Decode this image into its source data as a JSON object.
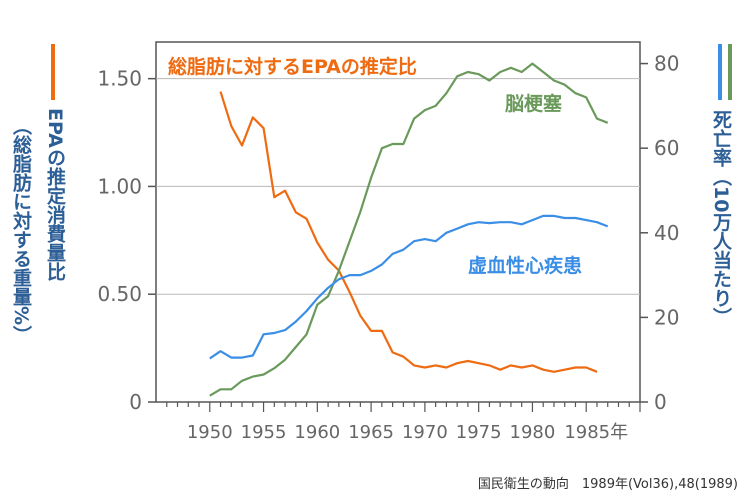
{
  "chart_data": {
    "type": "line",
    "x_axis": {
      "ticks": [
        1950,
        1955,
        1960,
        1965,
        1970,
        1975,
        1980,
        1985
      ],
      "tick_labels": [
        "1950",
        "1955",
        "1960",
        "1965",
        "1970",
        "1975",
        "1980",
        "1985年"
      ],
      "range": [
        1945,
        1990
      ]
    },
    "left_axis": {
      "label_color_bar": "#ee6b12",
      "label": "EPAの推定消費量比",
      "label_sub": "（総脂肪に対する重量%）",
      "ticks": [
        0,
        0.5,
        1.0,
        1.5
      ],
      "tick_labels": [
        "0",
        "0.50",
        "1.00",
        "1.50"
      ],
      "range": [
        0,
        1.67
      ]
    },
    "right_axis": {
      "label": "死亡率（10万人当たり）",
      "ticks": [
        0,
        20,
        40,
        60,
        80
      ],
      "tick_labels": [
        "0",
        "20",
        "40",
        "60",
        "80"
      ],
      "range": [
        0,
        85.1
      ]
    },
    "series": [
      {
        "name": "総脂肪に対するEPAの推定比",
        "color": "#ee6b12",
        "axis": "left",
        "x": [
          1951,
          1952,
          1953,
          1954,
          1955,
          1956,
          1957,
          1958,
          1959,
          1960,
          1961,
          1962,
          1963,
          1964,
          1965,
          1966,
          1967,
          1968,
          1969,
          1970,
          1971,
          1972,
          1973,
          1974,
          1975,
          1976,
          1977,
          1978,
          1979,
          1980,
          1981,
          1982,
          1983,
          1984,
          1985,
          1986
        ],
        "y": [
          1.44,
          1.28,
          1.19,
          1.32,
          1.27,
          0.95,
          0.98,
          0.88,
          0.85,
          0.74,
          0.66,
          0.61,
          0.51,
          0.4,
          0.33,
          0.33,
          0.23,
          0.21,
          0.17,
          0.16,
          0.17,
          0.16,
          0.18,
          0.19,
          0.18,
          0.17,
          0.15,
          0.17,
          0.16,
          0.17,
          0.15,
          0.14,
          0.15,
          0.16,
          0.16,
          0.14
        ]
      },
      {
        "name": "脳梗塞",
        "color": "#6a9a5b",
        "axis": "right",
        "x": [
          1950,
          1951,
          1952,
          1953,
          1954,
          1955,
          1956,
          1957,
          1958,
          1959,
          1960,
          1961,
          1962,
          1963,
          1964,
          1965,
          1966,
          1967,
          1968,
          1969,
          1970,
          1971,
          1972,
          1973,
          1974,
          1975,
          1976,
          1977,
          1978,
          1979,
          1980,
          1981,
          1982,
          1983,
          1984,
          1985,
          1986,
          1987
        ],
        "y": [
          1.5,
          3,
          3,
          5,
          6,
          6.5,
          8,
          10,
          13,
          16,
          23,
          25,
          31,
          38,
          45,
          53,
          60,
          61,
          61,
          67,
          69,
          70,
          73,
          77,
          78,
          77.5,
          76,
          78,
          79,
          78,
          80,
          78,
          76,
          75,
          73,
          72,
          67,
          66
        ]
      },
      {
        "name": "虚血性心疾患",
        "color": "#3a8ee6",
        "axis": "right",
        "x": [
          1950,
          1951,
          1952,
          1953,
          1954,
          1955,
          1956,
          1957,
          1958,
          1959,
          1960,
          1961,
          1962,
          1963,
          1964,
          1965,
          1966,
          1967,
          1968,
          1969,
          1970,
          1971,
          1972,
          1973,
          1974,
          1975,
          1976,
          1977,
          1978,
          1979,
          1980,
          1981,
          1982,
          1983,
          1984,
          1985,
          1986,
          1987
        ],
        "y": [
          10.3,
          12,
          10.5,
          10.5,
          11,
          16,
          16.3,
          17,
          19,
          21.5,
          24.5,
          27,
          29,
          30,
          30,
          31,
          32.5,
          35,
          36,
          38,
          38.5,
          38,
          40,
          41,
          42,
          42.5,
          42.3,
          42.5,
          42.5,
          42,
          43,
          44,
          44,
          43.5,
          43.5,
          43,
          42.5,
          41.5
        ]
      }
    ],
    "series_labels": {
      "epa": "総脂肪に対するEPAの推定比",
      "stroke": "脳梗塞",
      "ihd": "虚血性心疾患"
    }
  },
  "labels": {
    "left_title": "EPAの推定消費量比",
    "left_subtitle": "（総脂肪に対する重量%）",
    "right_title": "死亡率（10万人当たり）",
    "source": "国民衛生の動向　1989年(Vol36),48(1989)"
  },
  "colors": {
    "epa": "#ee6b12",
    "stroke": "#6a9a5b",
    "ihd": "#3a8ee6",
    "left_label": "#2d5f97",
    "right_label": "#2d5f97"
  }
}
